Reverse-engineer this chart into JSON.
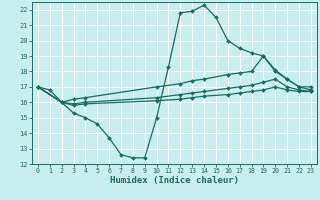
{
  "xlabel": "Humidex (Indice chaleur)",
  "bg_color": "#c8eef0",
  "grid_color": "#ffffff",
  "line_color": "#1a6b62",
  "xlim": [
    -0.5,
    23.5
  ],
  "ylim": [
    12,
    22.5
  ],
  "xticks": [
    0,
    1,
    2,
    3,
    4,
    5,
    6,
    7,
    8,
    9,
    10,
    11,
    12,
    13,
    14,
    15,
    16,
    17,
    18,
    19,
    20,
    21,
    22,
    23
  ],
  "yticks": [
    12,
    13,
    14,
    15,
    16,
    17,
    18,
    19,
    20,
    21,
    22
  ],
  "lines": [
    {
      "x": [
        0,
        1,
        2,
        3,
        4,
        5,
        6,
        7,
        8,
        9,
        10,
        11,
        12,
        13,
        14,
        15,
        16,
        17,
        18,
        19,
        20,
        21,
        22,
        23
      ],
      "y": [
        17.0,
        16.8,
        16.0,
        15.3,
        15.0,
        14.6,
        13.7,
        12.6,
        12.4,
        12.4,
        15.0,
        18.3,
        21.8,
        21.9,
        22.3,
        21.5,
        20.0,
        19.5,
        19.2,
        19.0,
        18.0,
        17.5,
        17.0,
        16.8
      ]
    },
    {
      "x": [
        0,
        2,
        3,
        4,
        10,
        12,
        13,
        14,
        16,
        17,
        18,
        19,
        20,
        21,
        22,
        23
      ],
      "y": [
        17.0,
        16.0,
        16.2,
        16.3,
        17.0,
        17.2,
        17.4,
        17.5,
        17.8,
        17.9,
        18.0,
        19.0,
        18.1,
        17.5,
        17.0,
        17.0
      ]
    },
    {
      "x": [
        0,
        2,
        3,
        4,
        10,
        12,
        13,
        14,
        16,
        17,
        18,
        19,
        20,
        21,
        22,
        23
      ],
      "y": [
        17.0,
        16.0,
        15.9,
        16.0,
        16.3,
        16.5,
        16.6,
        16.7,
        16.9,
        17.0,
        17.1,
        17.3,
        17.5,
        17.0,
        16.8,
        16.7
      ]
    },
    {
      "x": [
        0,
        2,
        3,
        4,
        10,
        12,
        13,
        14,
        16,
        17,
        18,
        19,
        20,
        21,
        22,
        23
      ],
      "y": [
        17.0,
        16.0,
        15.8,
        15.9,
        16.1,
        16.2,
        16.3,
        16.4,
        16.5,
        16.6,
        16.7,
        16.8,
        17.0,
        16.8,
        16.7,
        16.7
      ]
    }
  ]
}
